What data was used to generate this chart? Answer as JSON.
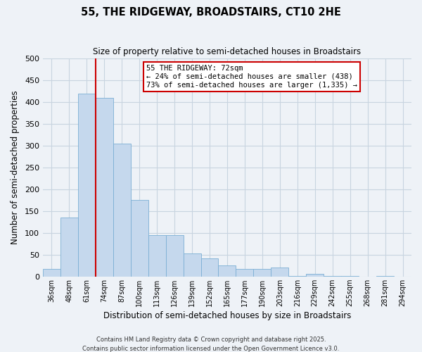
{
  "title": "55, THE RIDGEWAY, BROADSTAIRS, CT10 2HE",
  "subtitle": "Size of property relative to semi-detached houses in Broadstairs",
  "xlabel": "Distribution of semi-detached houses by size in Broadstairs",
  "ylabel": "Number of semi-detached properties",
  "footer_line1": "Contains HM Land Registry data © Crown copyright and database right 2025.",
  "footer_line2": "Contains public sector information licensed under the Open Government Licence v3.0.",
  "bar_labels": [
    "36sqm",
    "48sqm",
    "61sqm",
    "74sqm",
    "87sqm",
    "100sqm",
    "113sqm",
    "126sqm",
    "139sqm",
    "152sqm",
    "165sqm",
    "177sqm",
    "190sqm",
    "203sqm",
    "216sqm",
    "229sqm",
    "242sqm",
    "255sqm",
    "268sqm",
    "281sqm",
    "294sqm"
  ],
  "bar_values": [
    18,
    135,
    420,
    410,
    305,
    175,
    95,
    95,
    53,
    42,
    26,
    17,
    17,
    20,
    2,
    6,
    2,
    1,
    0,
    1,
    0
  ],
  "bar_color": "#c5d8ed",
  "bar_edge_color": "#7bafd4",
  "grid_color": "#c8d4e0",
  "bg_color": "#eef2f7",
  "vline_color": "#cc0000",
  "vline_index": 2.5,
  "annotation_title": "55 THE RIDGEWAY: 72sqm",
  "annotation_line1": "← 24% of semi-detached houses are smaller (438)",
  "annotation_line2": "73% of semi-detached houses are larger (1,335) →",
  "annotation_box_color": "#ffffff",
  "annotation_box_edge": "#cc0000",
  "ylim": [
    0,
    500
  ],
  "yticks": [
    0,
    50,
    100,
    150,
    200,
    250,
    300,
    350,
    400,
    450,
    500
  ]
}
